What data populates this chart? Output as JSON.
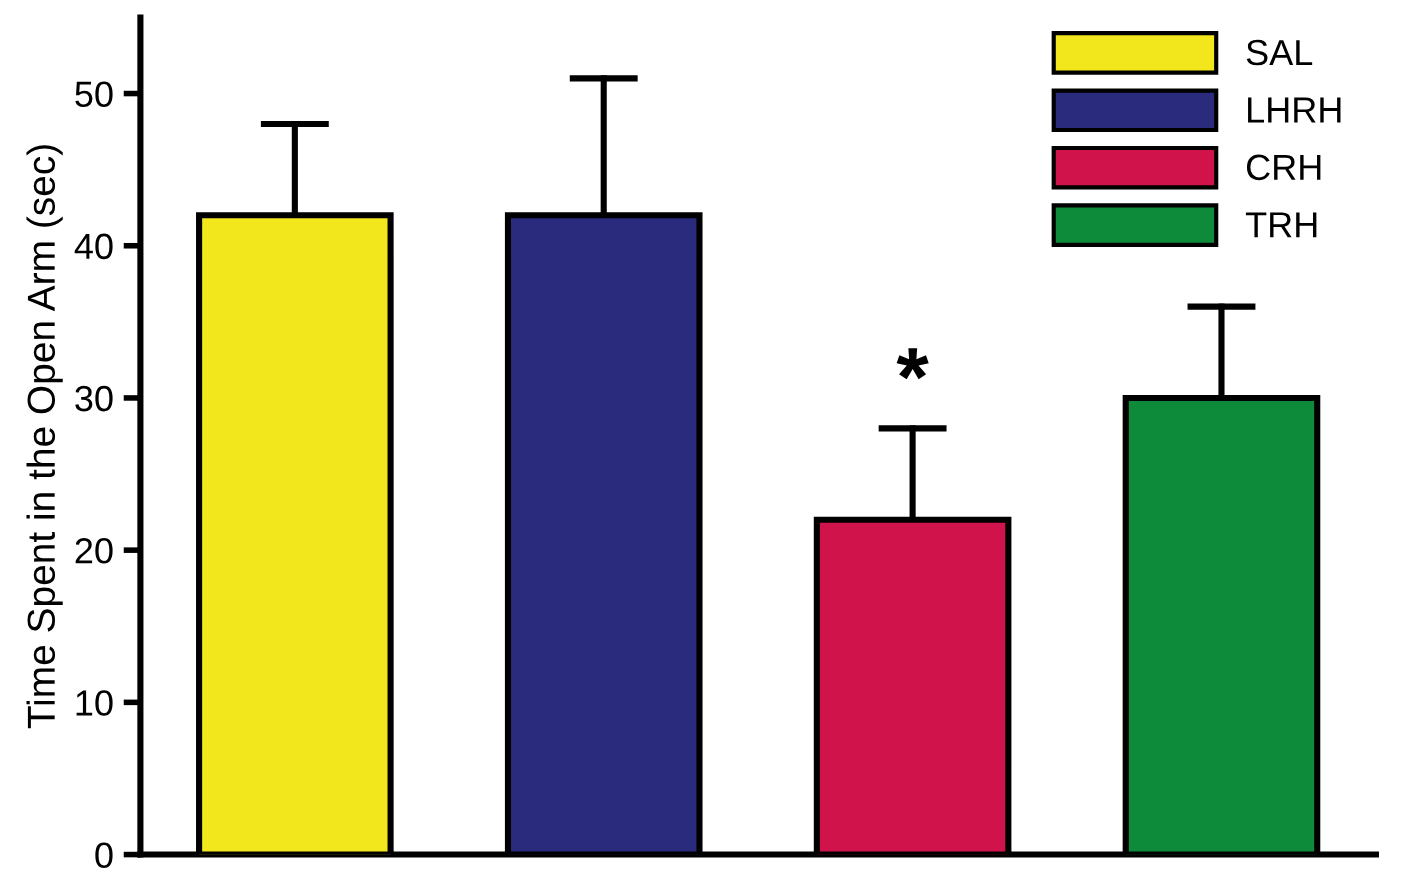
{
  "chart_data": {
    "type": "bar",
    "ylabel": "Time Spent in the Open Arm (sec)",
    "categories": [
      null,
      null,
      null,
      null
    ],
    "series": [
      {
        "name": "SAL",
        "color": "#f2e61c",
        "values": [
          42,
          null,
          null,
          null
        ],
        "errors": [
          [
            42,
            48
          ],
          null,
          null,
          null
        ]
      },
      {
        "name": "LHRH",
        "color": "#2b2b7e",
        "values": [
          null,
          42,
          null,
          null
        ],
        "errors": [
          null,
          [
            42,
            51
          ],
          null,
          null
        ]
      },
      {
        "name": "CRH",
        "color": "#d0134a",
        "values": [
          null,
          null,
          22,
          null
        ],
        "errors": [
          null,
          null,
          [
            22,
            28
          ],
          null
        ]
      },
      {
        "name": "TRH",
        "color": "#0e8b3a",
        "values": [
          null,
          null,
          null,
          30
        ],
        "errors": [
          null,
          null,
          null,
          [
            30,
            36
          ]
        ]
      }
    ],
    "annotations": [
      {
        "text": "*",
        "y": 28
      }
    ],
    "ylim": [
      0,
      55
    ],
    "yticks": [
      0,
      10,
      20,
      30,
      40,
      50
    ],
    "grid": false,
    "legend": "top right",
    "tick_labels": "y"
  }
}
